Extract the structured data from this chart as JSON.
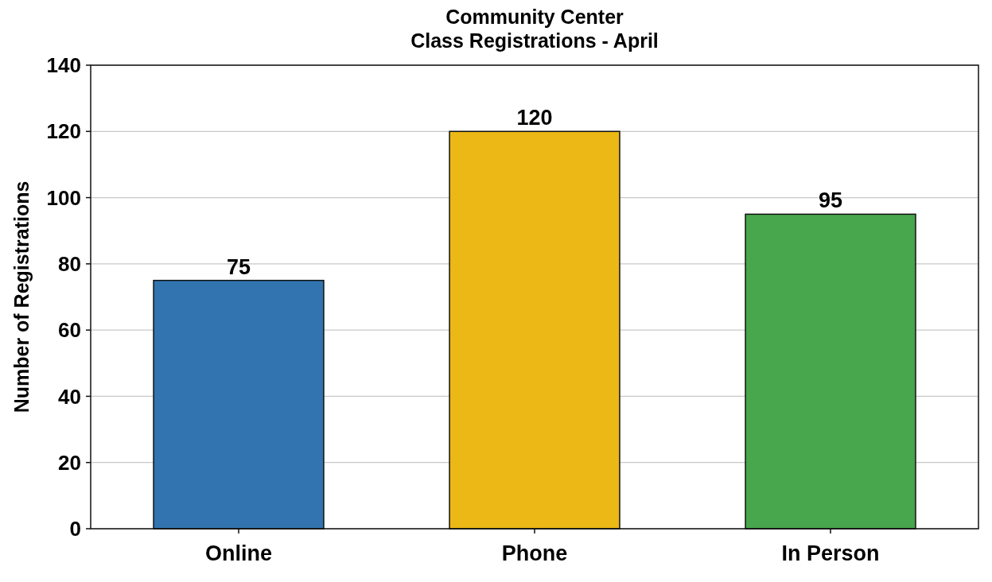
{
  "chart_data": {
    "type": "bar",
    "title": "Community Center\nClass Registrations - April",
    "ylabel": "Number of Registrations",
    "categories": [
      "Online",
      "Phone",
      "In Person"
    ],
    "values": [
      75,
      120,
      95
    ],
    "colors": [
      "#3274b0",
      "#ecb815",
      "#48a64c"
    ],
    "ylim": [
      0,
      140
    ],
    "yticks": [
      0,
      20,
      40,
      60,
      80,
      100,
      120,
      140
    ],
    "grid": "y",
    "data_labels": true
  }
}
